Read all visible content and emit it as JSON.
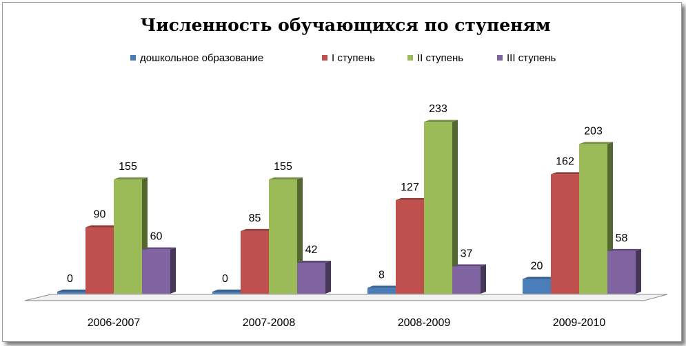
{
  "chart_data": {
    "type": "bar",
    "title": "Численность обучающихся по ступеням",
    "categories": [
      "2006-2007",
      "2007-2008",
      "2008-2009",
      "2009-2010"
    ],
    "series": [
      {
        "name": "дошкольное образование",
        "values": [
          0,
          0,
          8,
          20
        ],
        "color": "#4a7ebb"
      },
      {
        "name": "I ступень",
        "values": [
          90,
          85,
          127,
          162
        ],
        "color": "#c0504d"
      },
      {
        "name": "II ступень",
        "values": [
          155,
          155,
          233,
          203
        ],
        "color": "#9bbb59"
      },
      {
        "name": "III ступень",
        "values": [
          60,
          42,
          37,
          58
        ],
        "color": "#8064a2"
      }
    ],
    "xlabel": "",
    "ylabel": "",
    "ylim": [
      0,
      250
    ],
    "grid": false,
    "legend": "top",
    "data_labels": true,
    "style": "3d-clustered-column"
  }
}
